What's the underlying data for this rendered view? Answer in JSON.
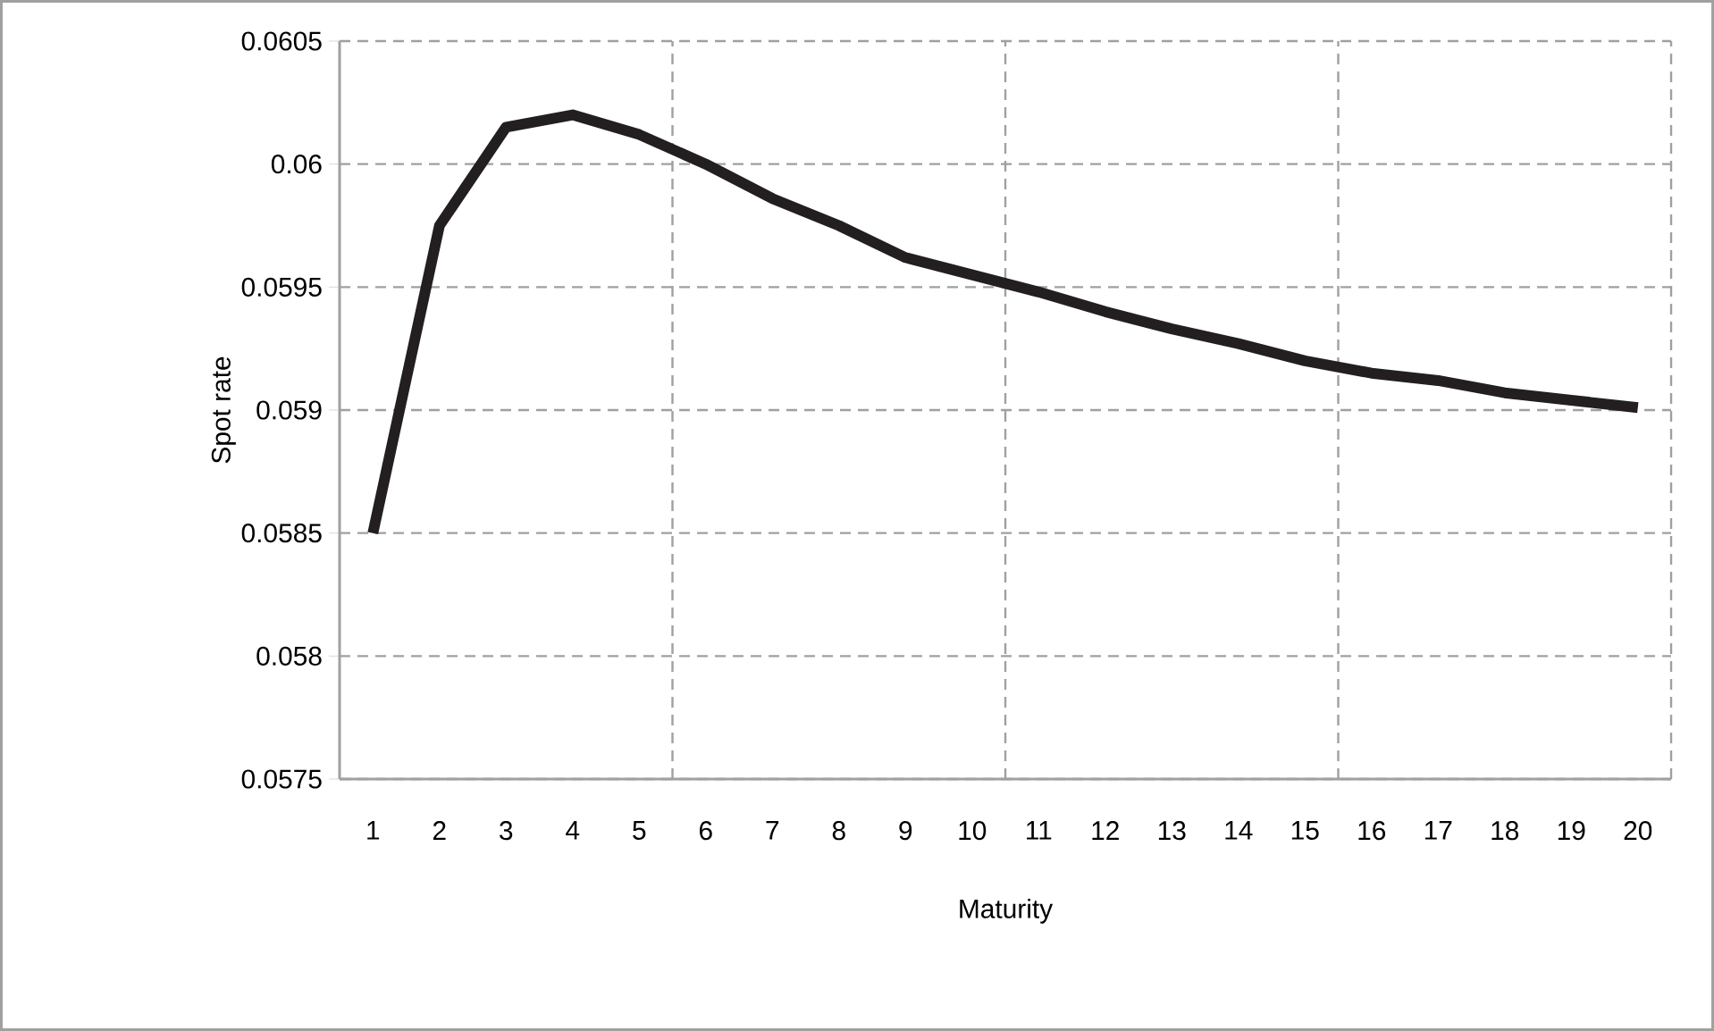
{
  "chart_data": {
    "type": "line",
    "xlabel": "Maturity",
    "ylabel": "Spot rate",
    "categories": [
      "1",
      "2",
      "3",
      "4",
      "5",
      "6",
      "7",
      "8",
      "9",
      "10",
      "11",
      "12",
      "13",
      "14",
      "15",
      "16",
      "17",
      "18",
      "19",
      "20"
    ],
    "series": [
      {
        "color": "#231f20",
        "values": [
          0.0585,
          0.05975,
          0.06015,
          0.0602,
          0.06012,
          0.06,
          0.05986,
          0.05975,
          0.05962,
          0.05955,
          0.05948,
          0.0594,
          0.05933,
          0.05927,
          0.0592,
          0.05915,
          0.05912,
          0.05907,
          0.05904,
          0.05901
        ]
      }
    ],
    "ylim": [
      0.0575,
      0.0605
    ],
    "yticks": [
      0.0575,
      0.058,
      0.0585,
      0.059,
      0.0595,
      0.06,
      0.0605
    ],
    "grid": true,
    "marker": "none",
    "line_style": "solid"
  }
}
